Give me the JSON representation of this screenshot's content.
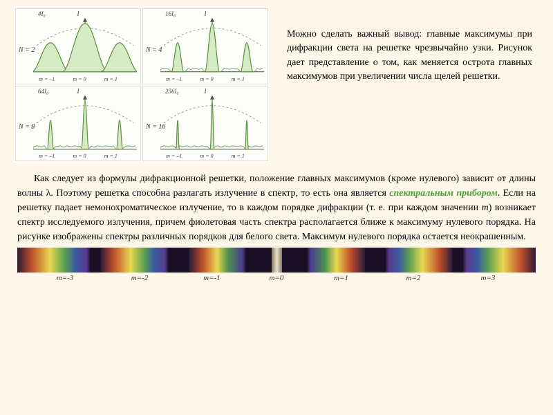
{
  "diagrams": {
    "cells": [
      {
        "n_label": "N = 2",
        "i_label": "4I₀",
        "peaks": "broad",
        "num_peaks": 3
      },
      {
        "n_label": "N = 4",
        "i_label": "16I₀",
        "peaks": "medium",
        "num_peaks": 3
      },
      {
        "n_label": "N = 8",
        "i_label": "64I₀",
        "peaks": "narrow",
        "num_peaks": 3
      },
      {
        "n_label": "N = 16",
        "i_label": "256I₀",
        "peaks": "very_narrow",
        "num_peaks": 3
      }
    ],
    "i_axis": "I",
    "m_labels": [
      "m = –1",
      "m = 0",
      "m = 1"
    ],
    "peak_fill": "#d4ebc3",
    "peak_stroke": "#5a8f3f",
    "axis_color": "#3a5a2a",
    "envelope_color": "#888"
  },
  "text_right": "Можно сделать важный вывод: главные максимумы при дифракции света на решетке чрезвычайно узки. Рисунок дает представление о том, как меняется острота главных максимумов при увеличении числа щелей решетки.",
  "main_text": {
    "p1": "Как следует из формулы дифракционной решетки, положение главных максимумов (кроме нулевого) зависит от длины волны λ. Поэтому решетка способна разлагать излучение в спектр, то есть она является ",
    "spectral": "спектральным прибором",
    "p2": ". Если на решетку падает немонохроматическое излучение, то в каждом порядке дифракции (т. е. при каждом значении ",
    "m_ital": "m",
    "p3": ") возникает спектр исследуемого излучения, причем фиолетовая часть спектра располагается ближе к максимуму нулевого порядка. На рисунке изображены спектры различных порядков для белого света. Максимум нулевого порядка остается неокрашенным."
  },
  "spectrum": {
    "segments": [
      {
        "width": 14,
        "gradient": "linear-gradient(90deg,#2a1a3a 0%,#c04f2a 20%,#e8d850 45%,#5aa050 65%,#3a5aa0 80%,#5a3a90 95%,#2a1a3a 100%)"
      },
      {
        "width": 2,
        "gradient": "#1a0f25"
      },
      {
        "width": 13,
        "gradient": "linear-gradient(90deg,#2a1a3a 0%,#c04f2a 20%,#e8d850 45%,#5aa050 65%,#3a5aa0 80%,#5a3a90 95%,#2a1a3a 100%)"
      },
      {
        "width": 4,
        "gradient": "#1a0f25"
      },
      {
        "width": 11,
        "gradient": "linear-gradient(90deg,#2a1a3a 0%,#c0502a 25%,#e8d850 50%,#4a9050 70%,#4a3a90 95%,#2a1a3a 100%)"
      },
      {
        "width": 5,
        "gradient": "#1a0f25"
      },
      {
        "width": 2,
        "gradient": "linear-gradient(90deg,#8a7a60,#e8e0c8,#8a7a60)"
      },
      {
        "width": 5,
        "gradient": "#1a0f25"
      },
      {
        "width": 11,
        "gradient": "linear-gradient(90deg,#2a1a3a 0%,#4a3a90 5%,#4a9050 30%,#e8d850 50%,#c0502a 75%,#2a1a3a 100%)"
      },
      {
        "width": 4,
        "gradient": "#1a0f25"
      },
      {
        "width": 13,
        "gradient": "linear-gradient(90deg,#2a1a3a 0%,#5a3a90 5%,#3a5aa0 20%,#5aa050 35%,#e8d850 55%,#c04f2a 80%,#2a1a3a 100%)"
      },
      {
        "width": 2,
        "gradient": "#1a0f25"
      },
      {
        "width": 14,
        "gradient": "linear-gradient(90deg,#2a1a3a 0%,#5a3a90 5%,#3a5aa0 20%,#5aa050 35%,#e8d850 55%,#c04f2a 80%,#2a1a3a 100%)"
      }
    ],
    "labels": [
      {
        "text": "m=-3",
        "width": 15
      },
      {
        "text": "m=-2",
        "width": 15
      },
      {
        "text": "m=-1",
        "width": 14
      },
      {
        "text": "m=0",
        "width": 12
      },
      {
        "text": "m=1",
        "width": 14
      },
      {
        "text": "m=2",
        "width": 15
      },
      {
        "text": "m=3",
        "width": 15
      }
    ]
  }
}
